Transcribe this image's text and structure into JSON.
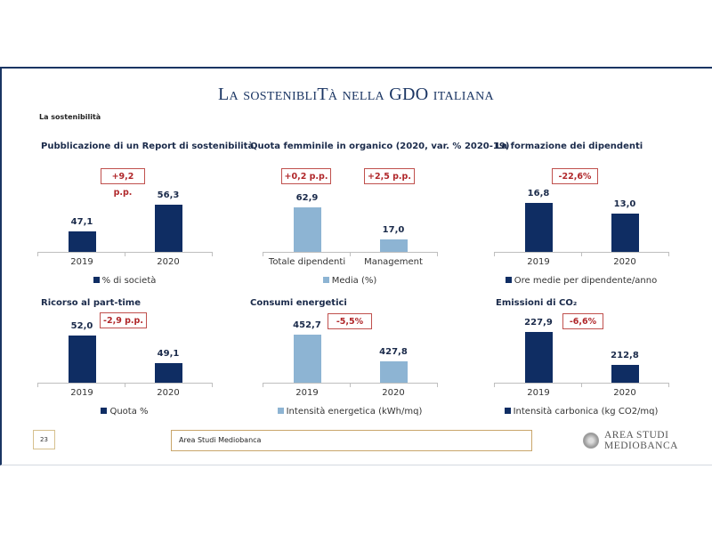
{
  "slide": {
    "title": "La sostenibliTà nella GDO italiana",
    "subtitle": "La sostenibilità",
    "page_number": "23",
    "footer_text": "Area Studi Mediobanca",
    "logo_line1": "AREA STUDI",
    "logo_line2": "MEDIOBANCA"
  },
  "colors": {
    "dark": "#0f2d63",
    "light": "#8db4d3",
    "badge": "#c0504d"
  },
  "chart_data": [
    {
      "type": "bar",
      "title": "Pubblicazione di un Report di sostenibilità",
      "categories": [
        "2019",
        "2020"
      ],
      "series": [
        {
          "name": "% di società",
          "values": [
            47.1,
            56.3
          ]
        }
      ],
      "labels": [
        "47,1",
        "56,3"
      ],
      "annotations": [
        "+9,2 p.p."
      ],
      "color": "dark",
      "ylim": [
        40,
        58.5
      ]
    },
    {
      "type": "bar",
      "title": "Quota femminile in organico (2020, var. % 2020-19)",
      "categories": [
        "Totale dipendenti",
        "Management"
      ],
      "series": [
        {
          "name": "Media (%)",
          "values": [
            62.9,
            17.0
          ]
        }
      ],
      "labels": [
        "62,9",
        "17,0"
      ],
      "annotations": [
        "+0,2 p.p.",
        "+2,5 p.p."
      ],
      "color": "light",
      "ylim": [
        0,
        75
      ]
    },
    {
      "type": "bar",
      "title": "La formazione dei dipendenti",
      "categories": [
        "2019",
        "2020"
      ],
      "series": [
        {
          "name": "Ore medie per dipendente/anno",
          "values": [
            16.8,
            13.0
          ]
        }
      ],
      "labels": [
        "16,8",
        "13,0"
      ],
      "annotations": [
        "-22,6%"
      ],
      "color": "dark",
      "ylim": [
        0,
        18.3
      ]
    },
    {
      "type": "bar",
      "title": "Ricorso al part-time",
      "categories": [
        "2019",
        "2020"
      ],
      "series": [
        {
          "name": "Quota %",
          "values": [
            52.0,
            49.1
          ]
        }
      ],
      "labels": [
        "52,0",
        "49,1"
      ],
      "annotations": [
        "-2,9 p.p."
      ],
      "color": "dark",
      "ylim": [
        47,
        52.7
      ]
    },
    {
      "type": "bar",
      "title": "Consumi energetici",
      "categories": [
        "2019",
        "2020"
      ],
      "series": [
        {
          "name": "Intensità energetica (kWh/mq)",
          "values": [
            452.7,
            427.8
          ]
        }
      ],
      "labels": [
        "452,7",
        "427,8"
      ],
      "annotations": [
        "-5,5%"
      ],
      "color": "light",
      "ylim": [
        408,
        458
      ]
    },
    {
      "type": "bar",
      "title": "Emissioni di CO₂",
      "categories": [
        "2019",
        "2020"
      ],
      "series": [
        {
          "name": "Intensità carbonica (kg CO2/mq)",
          "values": [
            227.9,
            212.8
          ]
        }
      ],
      "labels": [
        "227,9",
        "212,8"
      ],
      "annotations": [
        "-6,6%"
      ],
      "color": "dark",
      "ylim": [
        204.6,
        229.1
      ]
    }
  ]
}
